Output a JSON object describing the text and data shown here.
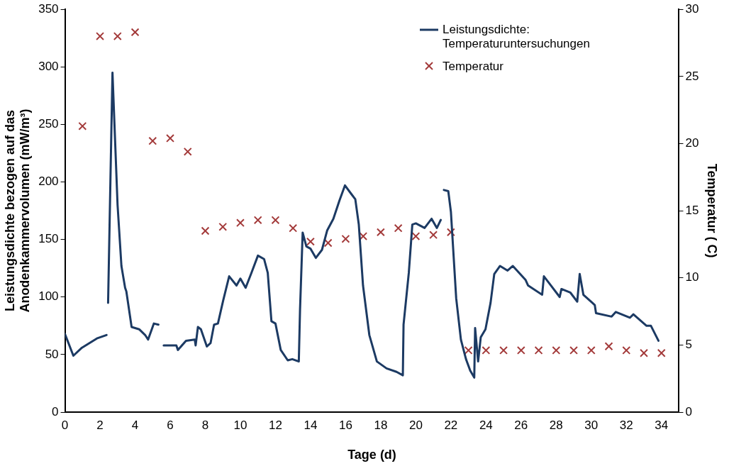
{
  "chart_data": {
    "type": "line",
    "xlabel": "Tage (d)",
    "ylabel": "Leistungsdichte bezogen auf das Anodenkammervolumen (mW/m³)",
    "y2label": "Temperatur ( C)",
    "xlim": [
      0,
      35
    ],
    "xticks": [
      0,
      2,
      4,
      6,
      8,
      10,
      12,
      14,
      16,
      18,
      20,
      22,
      24,
      26,
      28,
      30,
      32,
      34
    ],
    "ylim": [
      0,
      350
    ],
    "yticks": [
      0,
      50,
      100,
      150,
      200,
      250,
      300,
      350
    ],
    "y2lim": [
      0,
      30
    ],
    "y2ticks": [
      0,
      5,
      10,
      15,
      20,
      25,
      30
    ],
    "legend": "top right",
    "grid": false,
    "series": [
      {
        "name": "Leistungsdichte: Temperaturuntersuchungen",
        "type": "line",
        "color": "#1c3a63",
        "marker": "none",
        "line_style": "solid",
        "x": [
          0,
          0.48,
          0.97,
          1.82,
          2.37,
          2.4,
          2.46,
          2.71,
          3.0,
          3.22,
          3.43,
          3.5,
          3.8,
          4.23,
          4.57,
          4.74,
          5.07,
          5.33,
          5.4,
          5.63,
          6.35,
          6.44,
          6.9,
          7.4,
          7.45,
          7.58,
          7.75,
          8.09,
          8.3,
          8.5,
          8.72,
          9.02,
          9.36,
          9.78,
          10.0,
          10.3,
          10.63,
          11.0,
          11.35,
          11.56,
          11.77,
          12.0,
          12.3,
          12.7,
          12.96,
          13.33,
          13.4,
          13.55,
          13.76,
          14.0,
          14.3,
          14.65,
          14.95,
          15.3,
          15.65,
          15.96,
          16.3,
          16.55,
          16.75,
          16.99,
          17.35,
          17.78,
          18.33,
          18.9,
          19.26,
          19.3,
          19.6,
          19.8,
          20.0,
          20.5,
          20.9,
          21.2,
          21.42,
          21.5,
          21.6,
          21.85,
          22.0,
          22.3,
          22.57,
          22.86,
          23.1,
          23.33,
          23.38,
          23.55,
          23.7,
          23.97,
          24.26,
          24.47,
          24.8,
          25.23,
          25.53,
          26.25,
          26.4,
          27.2,
          27.3,
          27.65,
          28.2,
          28.3,
          28.8,
          29.2,
          29.34,
          29.55,
          30.06,
          30.2,
          30.27,
          31.16,
          31.4,
          32.2,
          32.4,
          33.15,
          33.4,
          33.83
        ],
        "values": [
          68,
          49,
          56,
          64,
          67,
          null,
          95,
          295,
          180,
          127,
          108,
          105,
          74,
          72,
          67,
          63,
          77,
          76,
          null,
          58,
          58,
          54,
          62,
          63,
          58,
          74,
          72,
          57,
          60,
          76,
          77,
          97,
          118,
          110,
          116,
          108,
          121,
          136,
          133,
          121,
          79,
          77,
          54,
          45,
          46,
          44,
          89,
          156,
          144,
          142,
          134,
          141,
          158,
          168,
          184,
          197,
          190,
          185,
          163,
          110,
          67,
          44,
          38,
          35,
          32,
          76,
          121,
          163,
          164,
          160,
          168,
          160,
          167,
          null,
          193,
          192,
          174,
          99,
          63,
          46,
          36,
          30,
          73,
          44,
          65,
          72,
          95,
          120,
          127,
          123,
          127,
          115,
          110,
          102,
          118,
          111,
          100,
          107,
          104,
          96,
          120,
          102,
          95,
          93,
          86,
          83,
          87,
          82,
          85,
          75,
          75,
          62
        ]
      },
      {
        "name": "Temperatur",
        "type": "scatter",
        "axis": "y2",
        "color": "#a33a3a",
        "marker": "cross",
        "x": [
          1,
          2,
          3,
          4,
          5,
          6,
          7,
          8,
          9,
          10,
          11,
          12,
          13,
          14,
          15,
          16,
          17,
          18,
          19,
          20,
          21,
          22,
          23,
          24,
          25,
          26,
          27,
          28,
          29,
          30,
          31,
          32,
          33,
          34
        ],
        "values": [
          21.3,
          28,
          28,
          28.3,
          20.2,
          20.4,
          19.4,
          13.5,
          13.8,
          14.1,
          14.3,
          14.3,
          13.7,
          12.7,
          12.6,
          12.9,
          13.1,
          13.4,
          13.7,
          13.1,
          13.2,
          13.4,
          4.6,
          4.6,
          4.6,
          4.6,
          4.6,
          4.6,
          4.6,
          4.6,
          4.9,
          4.6,
          4.4,
          4.4
        ]
      }
    ]
  }
}
